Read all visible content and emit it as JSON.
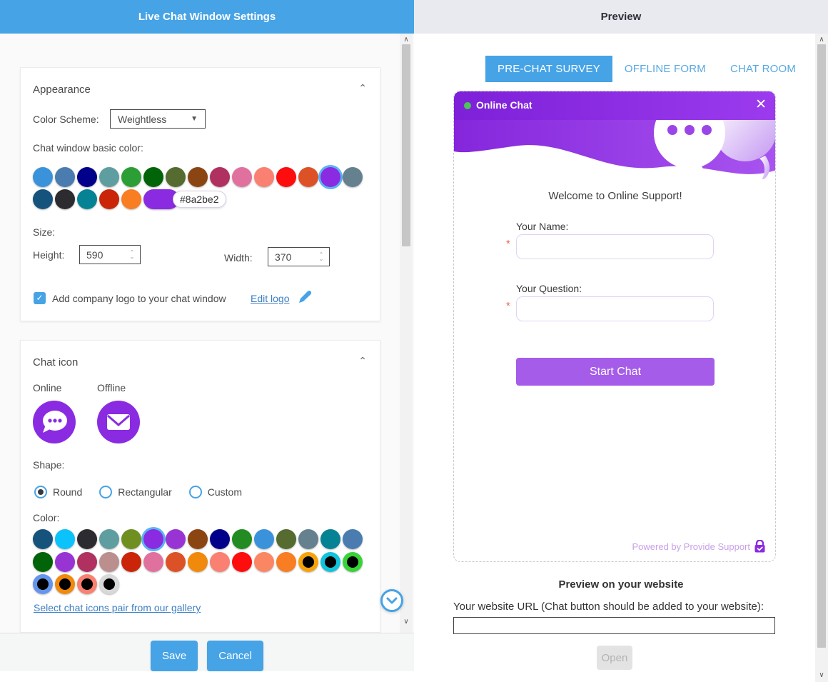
{
  "colors": {
    "accent_blue": "#46a3e6",
    "accent_purple": "#8a2be2",
    "start_button_purple": "#a55ce8"
  },
  "left": {
    "title": "Live Chat Window Settings",
    "appearance": {
      "title": "Appearance",
      "color_scheme_label": "Color Scheme:",
      "color_scheme_value": "Weightless",
      "basic_color_label": "Chat window basic color:",
      "window_colors_row1": [
        {
          "c": "#3a93da"
        },
        {
          "c": "#4a7cb0"
        },
        {
          "c": "#00008b"
        },
        {
          "c": "#5f9ea0"
        },
        {
          "c": "#2b9e35"
        },
        {
          "c": "#016409"
        },
        {
          "c": "#556b2f"
        },
        {
          "c": "#8b4513"
        },
        {
          "c": "#b03060"
        },
        {
          "c": "#e0719e"
        },
        {
          "c": "#fa8072"
        },
        {
          "c": "#fd0d0d"
        },
        {
          "c": "#dc5226"
        },
        {
          "c": "#8a2be2",
          "sel": true
        },
        {
          "c": "#65808f"
        }
      ],
      "window_colors_row2": [
        {
          "c": "#15537d"
        },
        {
          "c": "#2b2b30"
        },
        {
          "c": "#058394"
        },
        {
          "c": "#ca2508"
        },
        {
          "c": "#f87d23"
        },
        {
          "c": "#8a2be2",
          "cap": true,
          "tip": "#8a2be2"
        }
      ],
      "size_label": "Size:",
      "height_label": "Height:",
      "height_value": "590",
      "width_label": "Width:",
      "width_value": "370",
      "logo_checkbox_label": "Add company logo to your chat window",
      "edit_logo_label": "Edit logo"
    },
    "chat_icon": {
      "title": "Chat icon",
      "online_label": "Online",
      "offline_label": "Offline",
      "shape_label": "Shape:",
      "shapes": [
        {
          "label": "Round",
          "sel": true
        },
        {
          "label": "Rectangular",
          "sel": false
        },
        {
          "label": "Custom",
          "sel": false
        }
      ],
      "color_label": "Color:",
      "icon_colors_row1": [
        {
          "c": "#15537d"
        },
        {
          "c": "#0bc2fb"
        },
        {
          "c": "#2b2b30"
        },
        {
          "c": "#5f9ea0"
        },
        {
          "c": "#6f9021"
        },
        {
          "c": "#8a2be2",
          "sel": true
        },
        {
          "c": "#9934d4"
        },
        {
          "c": "#8b4513"
        },
        {
          "c": "#00008b"
        },
        {
          "c": "#228b22"
        },
        {
          "c": "#3a93da"
        },
        {
          "c": "#556b2f"
        },
        {
          "c": "#65808f"
        },
        {
          "c": "#058394"
        },
        {
          "c": "#4a7cb0"
        }
      ],
      "icon_colors_row2": [
        {
          "c": "#016409"
        },
        {
          "c": "#9934d4"
        },
        {
          "c": "#b03060"
        },
        {
          "c": "#bc8f8f"
        },
        {
          "c": "#ca2508"
        },
        {
          "c": "#e0719e"
        },
        {
          "c": "#dc5226"
        },
        {
          "c": "#f1890c"
        },
        {
          "c": "#fa8072"
        },
        {
          "c": "#fd0d0d"
        },
        {
          "c": "#fb8664"
        },
        {
          "c": "#f87d23"
        },
        {
          "c": "#f5a30b",
          "i": "#000000"
        },
        {
          "c": "#12c3dc",
          "i": "#000000"
        },
        {
          "c": "#37d437",
          "i": "#000000"
        }
      ],
      "icon_colors_row3": [
        {
          "c": "#6495ed",
          "i": "#000000"
        },
        {
          "c": "#f1890c",
          "i": "#000000"
        },
        {
          "c": "#fa8072",
          "i": "#000000"
        },
        {
          "c": "#d8d8d8",
          "i": "#000000"
        }
      ],
      "gallery_link": "Select chat icons pair from our gallery"
    },
    "footer": {
      "save_label": "Save",
      "cancel_label": "Cancel"
    }
  },
  "right": {
    "title": "Preview",
    "tabs": [
      {
        "label": "PRE-CHAT SURVEY",
        "active": true
      },
      {
        "label": "OFFLINE FORM",
        "active": false
      },
      {
        "label": "CHAT ROOM",
        "active": false
      }
    ],
    "chat": {
      "header_title": "Online Chat",
      "welcome": "Welcome to Online Support!",
      "required_marker": "*",
      "fields": [
        {
          "label": "Your Name:",
          "value": ""
        },
        {
          "label": "Your Question:",
          "value": ""
        }
      ],
      "start_button": "Start Chat",
      "powered_by": "Powered by Provide Support"
    },
    "site_preview": {
      "heading": "Preview on your website",
      "url_label": "Your website URL (Chat button should be added to your website):",
      "url_value": "",
      "open_button": "Open"
    }
  }
}
